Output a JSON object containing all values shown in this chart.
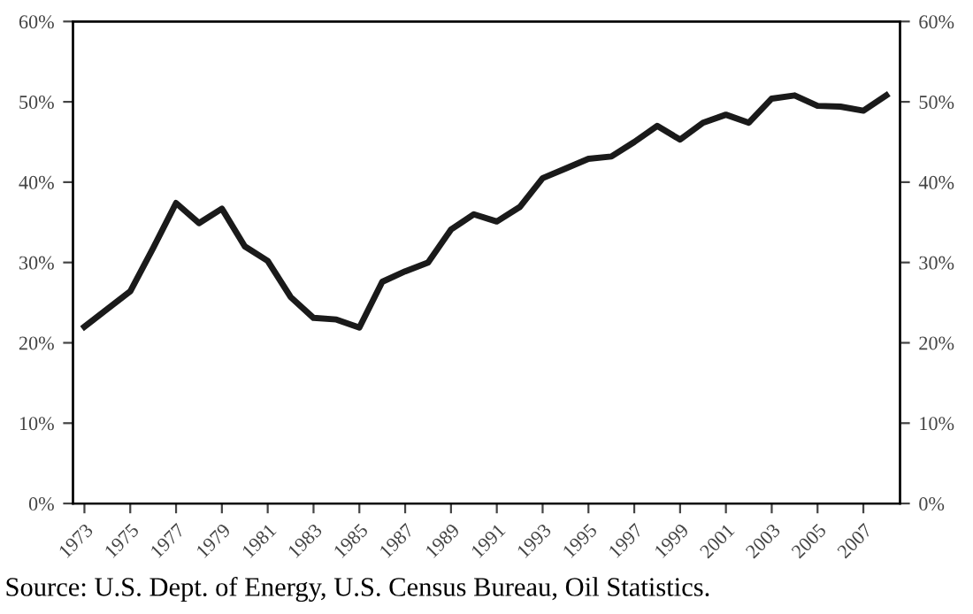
{
  "chart_data": {
    "type": "line",
    "x": [
      1973,
      1974,
      1975,
      1976,
      1977,
      1978,
      1979,
      1980,
      1981,
      1982,
      1983,
      1984,
      1985,
      1986,
      1987,
      1988,
      1989,
      1990,
      1991,
      1992,
      1993,
      1994,
      1995,
      1996,
      1997,
      1998,
      1999,
      2000,
      2001,
      2002,
      2003,
      2004,
      2005,
      2006,
      2007,
      2008
    ],
    "series": [
      {
        "color": "#1a1a1a",
        "values": [
          22.0,
          24.2,
          26.4,
          31.8,
          37.4,
          34.9,
          36.7,
          32.0,
          30.2,
          25.7,
          23.1,
          22.9,
          21.9,
          27.6,
          28.9,
          30.0,
          34.1,
          36.0,
          35.1,
          36.9,
          40.5,
          41.7,
          42.9,
          43.2,
          45.0,
          47.0,
          45.3,
          47.4,
          48.4,
          47.4,
          50.4,
          50.8,
          49.5,
          49.4,
          48.9,
          50.8
        ]
      }
    ],
    "xlim": [
      1972.5,
      2008.6
    ],
    "xticks": [
      1973,
      1975,
      1977,
      1979,
      1981,
      1983,
      1985,
      1987,
      1989,
      1991,
      1993,
      1995,
      1997,
      1999,
      2001,
      2003,
      2005,
      2007
    ],
    "ylim": [
      0,
      60
    ],
    "yticks": [
      {
        "value": 0,
        "label": "0%"
      },
      {
        "value": 10,
        "label": "10%"
      },
      {
        "value": 20,
        "label": "20%"
      },
      {
        "value": 30,
        "label": "30%"
      },
      {
        "value": 40,
        "label": "40%"
      },
      {
        "value": 50,
        "label": "50%"
      },
      {
        "value": 60,
        "label": "60%"
      }
    ],
    "y2lim": [
      0,
      60
    ],
    "y2ticks": [
      {
        "value": 0,
        "label": "0%"
      },
      {
        "value": 10,
        "label": "10%"
      },
      {
        "value": 20,
        "label": "20%"
      },
      {
        "value": 30,
        "label": "30%"
      },
      {
        "value": 40,
        "label": "40%"
      },
      {
        "value": 50,
        "label": "50%"
      },
      {
        "value": 60,
        "label": "60%"
      }
    ],
    "marker": "none",
    "line_style": "solid",
    "annotations": [
      "Source: U.S. Dept. of Energy, U.S. Census Bureau, Oil Statistics."
    ]
  }
}
